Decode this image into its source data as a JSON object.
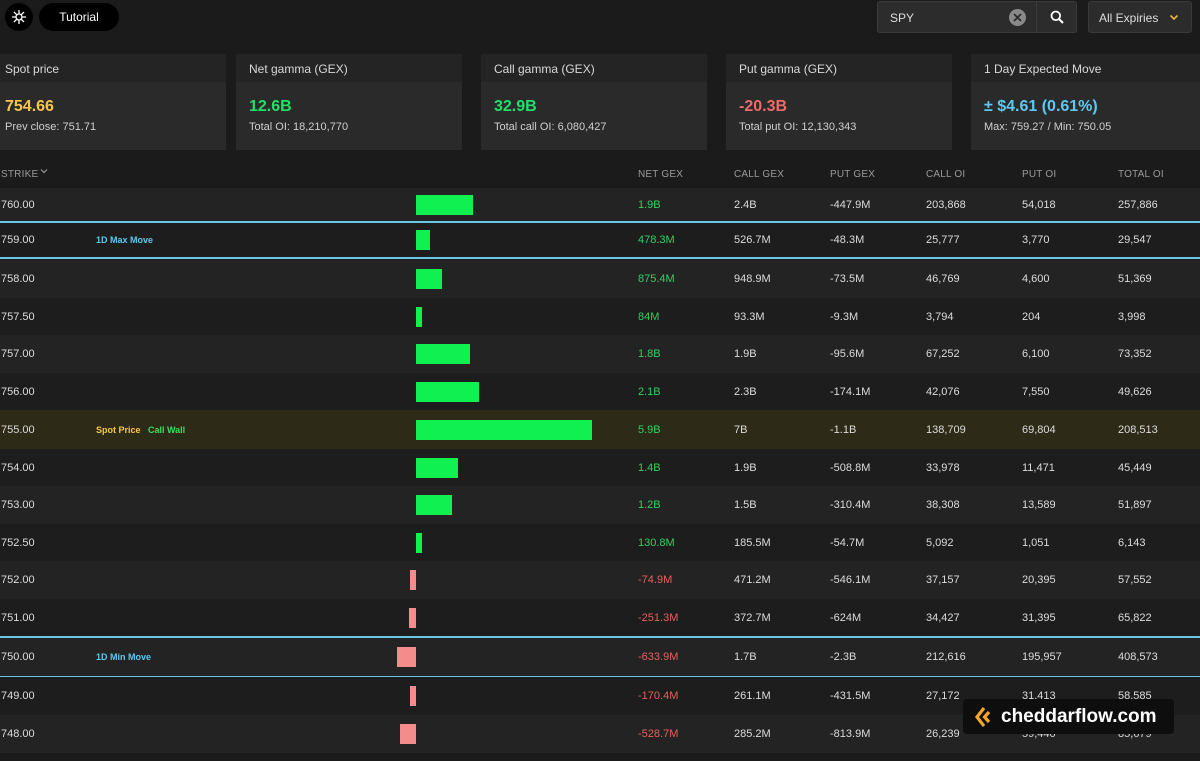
{
  "header": {
    "tutorial_label": "Tutorial",
    "search_value": "SPY",
    "expiry_label": "All Expiries"
  },
  "colors": {
    "positive": "#10f050",
    "negative": "#f58c8c",
    "spot": "#f5c74a",
    "expected": "#5ec8f0",
    "highlight_row": "#2d2a17"
  },
  "cards": [
    {
      "label": "Spot price",
      "value": "754.66",
      "sub": "Prev close: 751.71",
      "color": "#f5c74a"
    },
    {
      "label": "Net gamma (GEX)",
      "value": "12.6B",
      "sub": "Total OI: 18,210,770",
      "color": "#22e06a"
    },
    {
      "label": "Call gamma (GEX)",
      "value": "32.9B",
      "sub": "Total call OI: 6,080,427",
      "color": "#22e06a"
    },
    {
      "label": "Put gamma (GEX)",
      "value": "-20.3B",
      "sub": "Total put OI: 12,130,343",
      "color": "#f06a6a"
    },
    {
      "label": "1 Day Expected Move",
      "value": "± $4.61 (0.61%)",
      "sub": "Max: 759.27 / Min: 750.05",
      "color": "#5ec8f0"
    }
  ],
  "table": {
    "columns": [
      "STRIKE",
      "NET GEX",
      "CALL GEX",
      "PUT GEX",
      "CALL OI",
      "PUT OI",
      "TOTAL OI"
    ],
    "rows": [
      {
        "strike": "760.00",
        "net": "1.9B",
        "net_value": 1.9,
        "call": "2.4B",
        "put": "-447.9M",
        "coi": "203,868",
        "poi": "54,018",
        "toi": "257,886",
        "tags": []
      },
      {
        "strike": "759.00",
        "net": "478.3M",
        "net_value": 0.4783,
        "call": "526.7M",
        "put": "-48.3M",
        "coi": "25,777",
        "poi": "3,770",
        "toi": "29,547",
        "tags": [
          {
            "text": "1D Max Move",
            "kind": "move"
          }
        ]
      },
      {
        "strike": "758.00",
        "net": "875.4M",
        "net_value": 0.8754,
        "call": "948.9M",
        "put": "-73.5M",
        "coi": "46,769",
        "poi": "4,600",
        "toi": "51,369",
        "tags": []
      },
      {
        "strike": "757.50",
        "net": "84M",
        "net_value": 0.084,
        "call": "93.3M",
        "put": "-9.3M",
        "coi": "3,794",
        "poi": "204",
        "toi": "3,998",
        "tags": []
      },
      {
        "strike": "757.00",
        "net": "1.8B",
        "net_value": 1.8,
        "call": "1.9B",
        "put": "-95.6M",
        "coi": "67,252",
        "poi": "6,100",
        "toi": "73,352",
        "tags": []
      },
      {
        "strike": "756.00",
        "net": "2.1B",
        "net_value": 2.1,
        "call": "2.3B",
        "put": "-174.1M",
        "coi": "42,076",
        "poi": "7,550",
        "toi": "49,626",
        "tags": []
      },
      {
        "strike": "755.00",
        "net": "5.9B",
        "net_value": 5.9,
        "call": "7B",
        "put": "-1.1B",
        "coi": "138,709",
        "poi": "69,804",
        "toi": "208,513",
        "tags": [
          {
            "text": "Spot Price",
            "kind": "spot"
          },
          {
            "text": "Call Wall",
            "kind": "wall"
          }
        ]
      },
      {
        "strike": "754.00",
        "net": "1.4B",
        "net_value": 1.4,
        "call": "1.9B",
        "put": "-508.8M",
        "coi": "33,978",
        "poi": "11,471",
        "toi": "45,449",
        "tags": []
      },
      {
        "strike": "753.00",
        "net": "1.2B",
        "net_value": 1.2,
        "call": "1.5B",
        "put": "-310.4M",
        "coi": "38,308",
        "poi": "13,589",
        "toi": "51,897",
        "tags": []
      },
      {
        "strike": "752.50",
        "net": "130.8M",
        "net_value": 0.1308,
        "call": "185.5M",
        "put": "-54.7M",
        "coi": "5,092",
        "poi": "1,051",
        "toi": "6,143",
        "tags": []
      },
      {
        "strike": "752.00",
        "net": "-74.9M",
        "net_value": -0.0749,
        "call": "471.2M",
        "put": "-546.1M",
        "coi": "37,157",
        "poi": "20,395",
        "toi": "57,552",
        "tags": []
      },
      {
        "strike": "751.00",
        "net": "-251.3M",
        "net_value": -0.2513,
        "call": "372.7M",
        "put": "-624M",
        "coi": "34,427",
        "poi": "31,395",
        "toi": "65,822",
        "tags": []
      },
      {
        "strike": "750.00",
        "net": "-633.9M",
        "net_value": -0.6339,
        "call": "1.7B",
        "put": "-2.3B",
        "coi": "212,616",
        "poi": "195,957",
        "toi": "408,573",
        "tags": [
          {
            "text": "1D Min Move",
            "kind": "move"
          }
        ]
      },
      {
        "strike": "749.00",
        "net": "-170.4M",
        "net_value": -0.1704,
        "call": "261.1M",
        "put": "-431.5M",
        "coi": "27,172",
        "poi": "31,413",
        "toi": "58,585",
        "tags": []
      },
      {
        "strike": "748.00",
        "net": "-528.7M",
        "net_value": -0.5287,
        "call": "285.2M",
        "put": "-813.9M",
        "coi": "26,239",
        "poi": "59,440",
        "toi": "85,679",
        "tags": []
      }
    ]
  },
  "watermark": {
    "text": "cheddarflow.com"
  }
}
